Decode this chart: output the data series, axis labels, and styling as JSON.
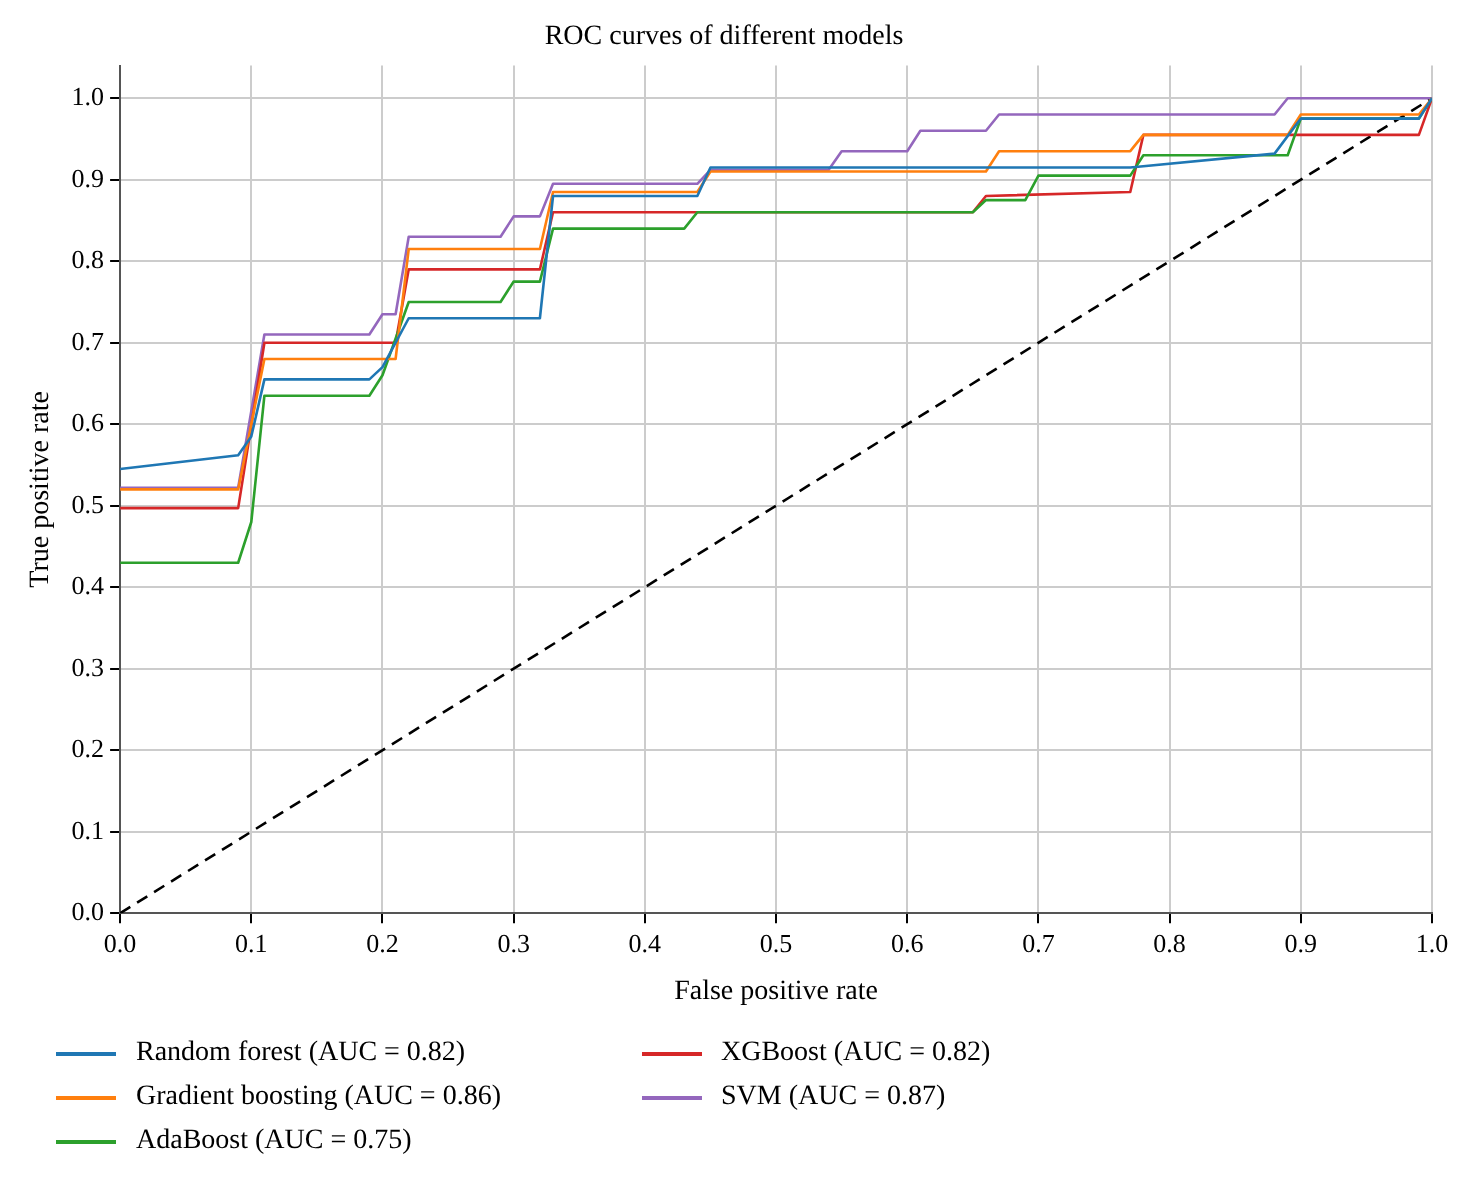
{
  "chart_data": {
    "type": "line",
    "title": "ROC curves of different models",
    "xlabel": "False positive rate",
    "ylabel": "True positive rate",
    "xlim": [
      0,
      1
    ],
    "ylim": [
      0,
      1.04
    ],
    "xticks": [
      {
        "value": 0,
        "label": "0.0"
      },
      {
        "value": 0.1,
        "label": "0.1"
      },
      {
        "value": 0.2,
        "label": "0.2"
      },
      {
        "value": 0.3,
        "label": "0.3"
      },
      {
        "value": 0.4,
        "label": "0.4"
      },
      {
        "value": 0.5,
        "label": "0.5"
      },
      {
        "value": 0.6,
        "label": "0.6"
      },
      {
        "value": 0.7,
        "label": "0.7"
      },
      {
        "value": 0.8,
        "label": "0.8"
      },
      {
        "value": 0.9,
        "label": "0.9"
      },
      {
        "value": 1,
        "label": "1.0"
      }
    ],
    "yticks": [
      {
        "value": 0,
        "label": "0.0"
      },
      {
        "value": 0.1,
        "label": "0.1"
      },
      {
        "value": 0.2,
        "label": "0.2"
      },
      {
        "value": 0.3,
        "label": "0.3"
      },
      {
        "value": 0.4,
        "label": "0.4"
      },
      {
        "value": 0.5,
        "label": "0.5"
      },
      {
        "value": 0.6,
        "label": "0.6"
      },
      {
        "value": 0.7,
        "label": "0.7"
      },
      {
        "value": 0.8,
        "label": "0.8"
      },
      {
        "value": 0.9,
        "label": "0.9"
      },
      {
        "value": 1,
        "label": "1.0"
      }
    ],
    "grid": true,
    "legend": "bottom",
    "marker": "none",
    "series": [
      {
        "name": "Random forest (AUC = 0.82)",
        "color": "#1f77b4",
        "x": [
          0,
          0.09,
          0.1,
          0.11,
          0.19,
          0.2,
          0.22,
          0.32,
          0.33,
          0.44,
          0.45,
          0.77,
          0.88,
          0.9,
          0.99,
          1
        ],
        "values": [
          0.545,
          0.562,
          0.585,
          0.655,
          0.655,
          0.67,
          0.73,
          0.73,
          0.88,
          0.88,
          0.915,
          0.915,
          0.932,
          0.975,
          0.975,
          1
        ]
      },
      {
        "name": "Gradient boosting (AUC = 0.86)",
        "color": "#ff7f0e",
        "x": [
          0,
          0.09,
          0.11,
          0.21,
          0.22,
          0.32,
          0.33,
          0.44,
          0.45,
          0.66,
          0.67,
          0.77,
          0.78,
          0.89,
          0.9,
          0.99,
          1
        ],
        "values": [
          0.52,
          0.52,
          0.68,
          0.68,
          0.815,
          0.815,
          0.885,
          0.885,
          0.91,
          0.91,
          0.935,
          0.935,
          0.955,
          0.955,
          0.98,
          0.98,
          1
        ]
      },
      {
        "name": "AdaBoost (AUC = 0.75)",
        "color": "#2ca02c",
        "x": [
          0,
          0.09,
          0.1,
          0.11,
          0.19,
          0.2,
          0.22,
          0.29,
          0.3,
          0.32,
          0.33,
          0.43,
          0.44,
          0.65,
          0.66,
          0.69,
          0.7,
          0.77,
          0.78,
          0.89,
          0.9,
          0.99,
          1
        ],
        "values": [
          0.43,
          0.43,
          0.48,
          0.635,
          0.635,
          0.66,
          0.75,
          0.75,
          0.775,
          0.775,
          0.84,
          0.84,
          0.86,
          0.86,
          0.875,
          0.875,
          0.905,
          0.905,
          0.93,
          0.93,
          0.975,
          0.975,
          1
        ]
      },
      {
        "name": "XGBoost (AUC = 0.82)",
        "color": "#d62728",
        "x": [
          0,
          0.09,
          0.11,
          0.21,
          0.22,
          0.32,
          0.33,
          0.65,
          0.66,
          0.77,
          0.78,
          0.99,
          1
        ],
        "values": [
          0.497,
          0.497,
          0.7,
          0.7,
          0.79,
          0.79,
          0.86,
          0.86,
          0.88,
          0.885,
          0.955,
          0.955,
          1
        ]
      },
      {
        "name": "SVM (AUC = 0.87)",
        "color": "#9467bd",
        "x": [
          0,
          0.09,
          0.11,
          0.19,
          0.2,
          0.21,
          0.22,
          0.29,
          0.3,
          0.32,
          0.33,
          0.44,
          0.45,
          0.54,
          0.55,
          0.6,
          0.61,
          0.66,
          0.67,
          0.88,
          0.89,
          1
        ],
        "values": [
          0.522,
          0.522,
          0.71,
          0.71,
          0.735,
          0.735,
          0.83,
          0.83,
          0.855,
          0.855,
          0.895,
          0.895,
          0.912,
          0.912,
          0.935,
          0.935,
          0.96,
          0.96,
          0.98,
          0.98,
          1,
          1
        ]
      },
      {
        "color": "#000000",
        "line_style": "dashed",
        "x": [
          0,
          1
        ],
        "values": [
          0,
          1
        ]
      }
    ]
  }
}
